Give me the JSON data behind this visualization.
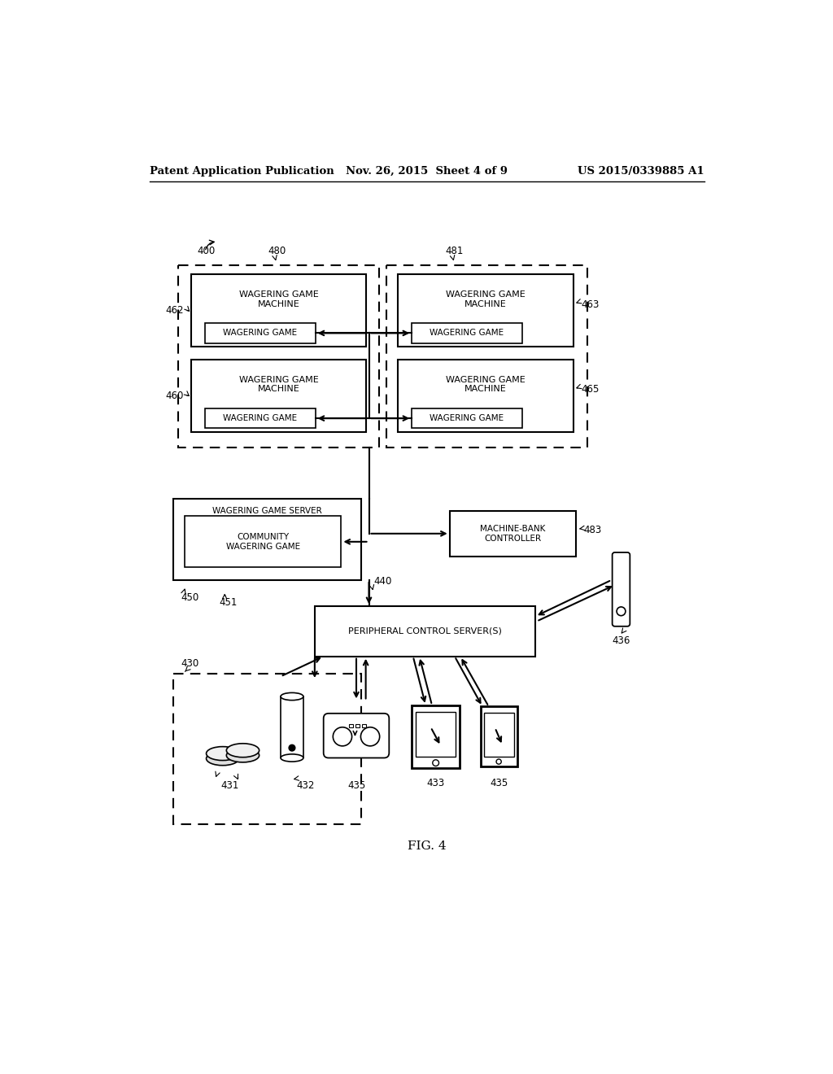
{
  "title_left": "Patent Application Publication",
  "title_center": "Nov. 26, 2015  Sheet 4 of 9",
  "title_right": "US 2015/0339885 A1",
  "fig_label": "FIG. 4",
  "background": "#ffffff"
}
